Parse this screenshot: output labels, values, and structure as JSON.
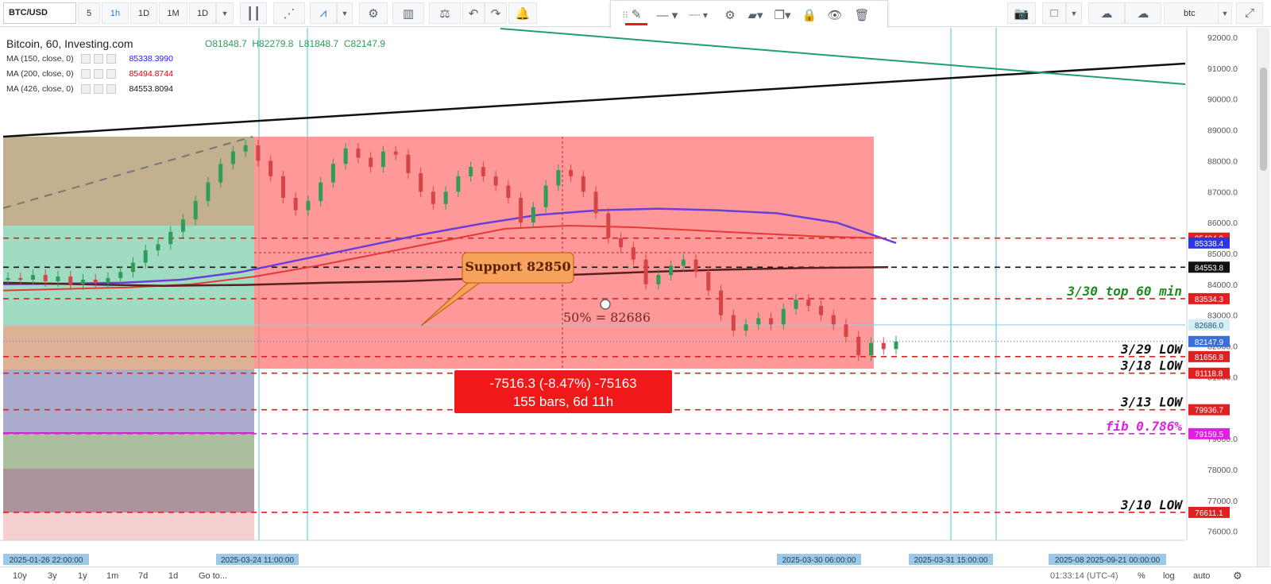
{
  "toolbar": {
    "symbol": "BTC/USD",
    "intervals": [
      "5",
      "1h",
      "1D",
      "1M",
      "1D"
    ],
    "active_interval": "1h",
    "search_value": "btc"
  },
  "legend": {
    "title": "Bitcoin, 60, Investing.com",
    "open": "O81848.7",
    "high": "H82279.8",
    "low": "L81848.7",
    "close": "C82147.9",
    "ma": [
      {
        "label": "MA (150, close, 0)",
        "value": "85338.3990",
        "color": "#1a1aff"
      },
      {
        "label": "MA (200, close, 0)",
        "value": "85494.8744",
        "color": "#e00000"
      },
      {
        "label": "MA (426, close, 0)",
        "value": "84553.8094",
        "color": "#111111"
      }
    ]
  },
  "chart_data": {
    "type": "line",
    "title": "Bitcoin, 60, Investing.com",
    "x_axis_labels": [
      "2025-01-26 22:00:00",
      "2025-03-24 11:00:00",
      "2025-03-30 06:00:00",
      "2025-03-31 15:00:00",
      "2025-08 2025-09-21 00:00:00"
    ],
    "y_axis": {
      "ticks": [
        "92000.0",
        "91000.0",
        "90000.0",
        "89000.0",
        "88000.0",
        "87000.0",
        "86000.0",
        "85000.0",
        "84000.0",
        "83000.0",
        "82000.0",
        "81000.0",
        "79000.0",
        "78000.0",
        "77000.0",
        "76000.0"
      ],
      "ylim": [
        75750,
        92250
      ]
    },
    "price_series": {
      "name": "BTC/USD 1h",
      "values": [
        84200,
        84150,
        84300,
        84100,
        84250,
        84000,
        84150,
        84050,
        84200,
        84400,
        84700,
        85100,
        85300,
        85700,
        86100,
        86700,
        87300,
        87900,
        88300,
        88500,
        88000,
        87500,
        86800,
        86400,
        86700,
        87300,
        87900,
        88400,
        88100,
        87800,
        88300,
        88200,
        87600,
        87000,
        86600,
        87000,
        87500,
        87800,
        87500,
        87200,
        86800,
        86000,
        86500,
        87200,
        87700,
        87500,
        87000,
        86300,
        85500,
        85200,
        84800,
        84000,
        84300,
        84600,
        84800,
        84400,
        83800,
        83000,
        82500,
        82700,
        82900,
        82700,
        83200,
        83500,
        83300,
        83000,
        82700,
        82300,
        81700,
        82100,
        81900,
        82148
      ]
    },
    "moving_averages": [
      {
        "name": "MA (150, close, 0)",
        "color": "#6b3fd6",
        "values": [
          84000,
          84020,
          84050,
          84150,
          84400,
          84800,
          85200,
          85600,
          85950,
          86250,
          86400,
          86450,
          86400,
          86300,
          86000,
          85338
        ]
      },
      {
        "name": "MA (200, close, 0)",
        "color": "#e53935",
        "values": [
          83800,
          83850,
          83900,
          84000,
          84250,
          84600,
          85000,
          85400,
          85800,
          85900,
          85850,
          85750,
          85650,
          85550,
          85494
        ]
      },
      {
        "name": "MA (426, close, 0)",
        "color": "#5a1f1f",
        "values": [
          84050,
          84000,
          83950,
          83980,
          84050,
          84100,
          84200,
          84300,
          84400,
          84480,
          84530,
          84553
        ]
      }
    ],
    "horizontal_levels": [
      {
        "value": 85494.9,
        "label": "85494.9",
        "color": "#e02020",
        "style": "dashed"
      },
      {
        "value": 85338.4,
        "label": "85338.4",
        "color": "#2a36e0",
        "style": "solid-label"
      },
      {
        "value": 84553.8,
        "label": "84553.8",
        "color": "#111111",
        "style": "dashed"
      },
      {
        "value": 83534.3,
        "label": "83534.3",
        "color": "#e02020",
        "style": "dashed",
        "annotation": "3/30 top 60 min",
        "annotation_color": "#1e8a1e"
      },
      {
        "value": 82686.0,
        "label": "82686.0",
        "color": "#8ecfe0",
        "style": "solid"
      },
      {
        "value": 82147.9,
        "label": "82147.9",
        "color": "#3a6fd8",
        "style": "dotted"
      },
      {
        "value": 81656.8,
        "label": "81656.8",
        "color": "#e02020",
        "style": "dashed",
        "annotation": "3/29  LOW",
        "annotation_color": "#111111"
      },
      {
        "value": 81118.8,
        "label": "81118.8",
        "color": "#e02020",
        "style": "dashed",
        "annotation": "3/18  LOW",
        "annotation_color": "#111111"
      },
      {
        "value": 79936.7,
        "label": "79936.7",
        "color": "#e02020",
        "style": "dashed",
        "annotation": "3/13  LOW",
        "annotation_color": "#111111"
      },
      {
        "value": 79159.5,
        "label": "79159.5",
        "color": "#e020e0",
        "style": "dashed",
        "annotation": "fib 0.786%",
        "annotation_color": "#e020e0"
      },
      {
        "value": 76611.1,
        "label": "76611.1",
        "color": "#e02020",
        "style": "dashed",
        "annotation": "3/10  LOW",
        "annotation_color": "#111111"
      }
    ],
    "annotations": {
      "callout": "Support 82850",
      "midpoint_label": "50% = 82686",
      "measure_line1": "-7516.3 (-8.47%) -75163",
      "measure_line2": "155 bars, 6d 11h"
    }
  },
  "bottom_bar": {
    "ranges": [
      "10y",
      "3y",
      "1y",
      "1m",
      "7d",
      "1d",
      "Go to..."
    ],
    "clock": "01:33:14 (UTC-4)",
    "scale_options": [
      "%",
      "log",
      "auto"
    ]
  }
}
